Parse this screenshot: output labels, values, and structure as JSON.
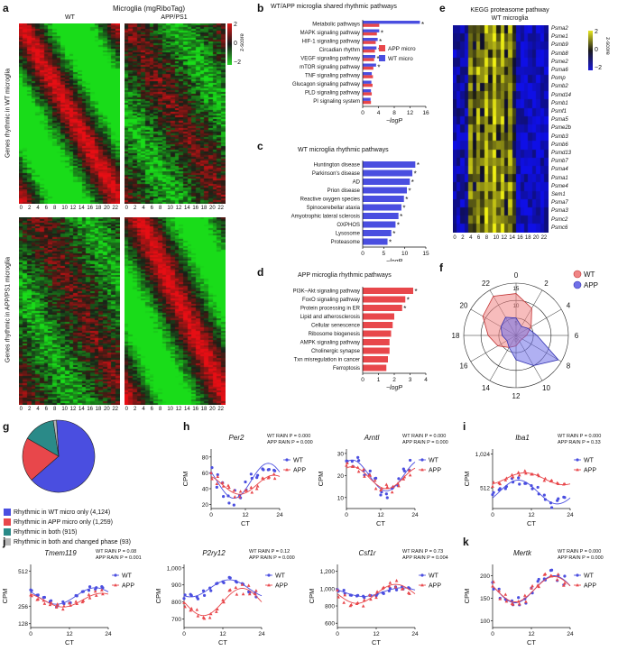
{
  "panels": {
    "a": {
      "label": "a",
      "title": "Microglia (mgRiboTag)",
      "col_wt": "WT",
      "col_app": "APP/PS1",
      "row_top": "Genes rhythmic in WT microglia",
      "row_bottom": "Genes rhythmic in APP/PS1 microglia",
      "x_ticks": [
        "0",
        "2",
        "4",
        "6",
        "8",
        "10",
        "12",
        "14",
        "16",
        "18",
        "20",
        "22"
      ],
      "scale_ticks": [
        "2",
        "0",
        "−2"
      ],
      "scale_label": "z-score"
    },
    "b": {
      "label": "b",
      "title": "WT/APP microglia shared rhythmic pathways",
      "xlabel": "−logP",
      "x_ticks": [
        "0",
        "4",
        "8",
        "12",
        "16"
      ],
      "legend": [
        "APP micro",
        "WT micro"
      ],
      "colors": {
        "app": "#e8474b",
        "wt": "#4a4ee0"
      },
      "terms": [
        "Metabolic pathways",
        "MAPK signaling pathway",
        "HIF-1 signaling pathway",
        "Circadian rhythm",
        "VEGF signaling pathway",
        "mTOR signaling pathway",
        "TNF signaling pathway",
        "Glucagon signaling pathway",
        "PLD signaling pathway",
        "PI signaling system"
      ],
      "wt": [
        14.5,
        4.2,
        3.8,
        3.5,
        3.2,
        3.4,
        2.3,
        2.2,
        2.1,
        2.0
      ],
      "app": [
        4.2,
        3.6,
        3.3,
        3.1,
        2.9,
        2.7,
        2.6,
        2.5,
        2.3,
        2.1
      ],
      "star": [
        true,
        true,
        true,
        true,
        true,
        true,
        false,
        false,
        false,
        false
      ]
    },
    "c": {
      "label": "c",
      "title": "WT microglia rhythmic pathways",
      "xlabel": "−logP",
      "x_ticks": [
        "0",
        "5",
        "10",
        "15"
      ],
      "terms": [
        "Huntington disease",
        "Parkinson's disease",
        "AD",
        "Prion disease",
        "Reactive oxygen species",
        "Spinocerebellar ataxia",
        "Amyotrophic lateral sclerosis",
        "OXPHOS",
        "Lysosome",
        "Proteasome"
      ],
      "values": [
        12.5,
        11.8,
        11.2,
        10.5,
        9.8,
        9.2,
        8.5,
        7.8,
        6.8,
        5.9
      ],
      "star": true
    },
    "d": {
      "label": "d",
      "title": "APP microglia rhythmic pathways",
      "xlabel": "−logP",
      "x_ticks": [
        "0",
        "1",
        "2",
        "3",
        "4"
      ],
      "terms": [
        "PI3K–Akt signaling pathway",
        "FoxO signaling pathway",
        "Protein processing in ER",
        "Lipid and atherosclerosis",
        "Cellular senescence",
        "Ribosome biogenesis",
        "AMPK signaling pathway",
        "Cholinergic synapse",
        "Txn misregulation in cancer",
        "Ferroptosis"
      ],
      "values": [
        3.2,
        2.7,
        2.5,
        2.0,
        1.9,
        1.8,
        1.7,
        1.7,
        1.6,
        1.5
      ],
      "star": [
        true,
        true,
        true,
        false,
        false,
        false,
        false,
        false,
        false,
        false
      ]
    },
    "e": {
      "label": "e",
      "title1": "KEGG proteasome pathway",
      "title2": "WT microglia",
      "genes": [
        "Psma2",
        "Psme1",
        "Psmb9",
        "Psmb8",
        "Psme2",
        "Psma6",
        "Pomp",
        "Psmb2",
        "Psmd14",
        "Psmb1",
        "Psmf1",
        "Psma5",
        "Psme2b",
        "Psmb3",
        "Psmb6",
        "Psmd13",
        "Psmb7",
        "Psma4",
        "Psma1",
        "Psme4",
        "Sem1",
        "Psma7",
        "Psma3",
        "Psmc2",
        "Psmc6"
      ],
      "x_ticks": [
        "0",
        "2",
        "4",
        "6",
        "8",
        "10",
        "12",
        "14",
        "16",
        "18",
        "20",
        "22"
      ],
      "scale_ticks": [
        "2",
        "0",
        "−2"
      ],
      "scale_label": "z-score"
    },
    "f": {
      "label": "f",
      "hours": [
        "0",
        "2",
        "4",
        "6",
        "8",
        "10",
        "12",
        "14",
        "16",
        "18",
        "20",
        "22"
      ],
      "rings": [
        "15",
        "10",
        "5",
        "0"
      ],
      "legend": [
        "WT",
        "APP"
      ],
      "wt": [
        12,
        9,
        5,
        3,
        2,
        2,
        3,
        4,
        6,
        8,
        11,
        13
      ],
      "app": [
        5,
        3,
        4,
        6,
        14,
        10,
        7,
        4,
        3,
        4,
        5,
        6
      ]
    },
    "g": {
      "label": "g",
      "slices": [
        {
          "label": "Rhythmic in WT micro only (4,124)",
          "value": 4124,
          "color": "#4a4ee0"
        },
        {
          "label": "Rhythmic in APP micro only (1,259)",
          "value": 1259,
          "color": "#e8474b"
        },
        {
          "label": "Rhythmic in both (915)",
          "value": 915,
          "color": "#2a8a88"
        },
        {
          "label": "Rhythmic in both and changed phase (93)",
          "value": 93,
          "color": "#b5b5b5"
        }
      ]
    },
    "h": {
      "label": "h",
      "ylabel": "CPM",
      "xlabel": "CT",
      "legend": [
        "WT",
        "APP"
      ],
      "plots": [
        {
          "gene": "Per2",
          "stat1": "WT RAIN P = 0.000",
          "stat2": "APP RAIN P = 0.000",
          "y_ticks": [
            "20",
            "40",
            "60",
            "80"
          ],
          "ymin": 15,
          "ymax": 90,
          "wt_mean": 50,
          "wt_amp": 22,
          "wt_phase": 20,
          "app_mean": 45,
          "app_amp": 12,
          "app_phase": 22
        },
        {
          "gene": "Arntl",
          "stat1": "WT RAIN P = 0.000",
          "stat2": "APP RAIN P = 0.000",
          "y_ticks": [
            "10",
            "20",
            "30"
          ],
          "ymin": 5,
          "ymax": 32,
          "wt_mean": 20,
          "wt_amp": 7,
          "wt_phase": 2,
          "app_mean": 19,
          "app_amp": 5,
          "app_phase": 2
        }
      ]
    },
    "i": {
      "label": "i",
      "gene": "Iba1",
      "stat1": "WT RAIN P = 0.000",
      "stat2": "APP RAIN P = 0.33",
      "ylabel": "CPM",
      "xlabel": "CT",
      "y_ticks": [
        "512",
        "1,024"
      ],
      "legend": [
        "WT",
        "APP"
      ]
    },
    "j": {
      "label": "j",
      "ylabel": "CPM",
      "xlabel": "CT",
      "legend": [
        "WT",
        "APP"
      ],
      "plots": [
        {
          "gene": "Tmem119",
          "stat1": "WT RAIN P = 0.08",
          "stat2": "APP RAIN P = 0.001",
          "y_ticks": [
            "128",
            "256",
            "512"
          ]
        },
        {
          "gene": "P2ry12",
          "stat1": "WT RAIN P = 0.12",
          "stat2": "APP RAIN P = 0.000",
          "y_ticks": [
            "700",
            "800",
            "900",
            "1,000"
          ]
        },
        {
          "gene": "Csf1r",
          "stat1": "WT RAIN P = 0.73",
          "stat2": "APP RAIN P = 0.004",
          "y_ticks": [
            "600",
            "800",
            "1,000",
            "1,200"
          ]
        }
      ]
    },
    "k": {
      "label": "k",
      "gene": "Mertk",
      "stat1": "WT RAIN P = 0.000",
      "stat2": "APP RAIN P = 0.000",
      "ylabel": "CPM",
      "xlabel": "CT",
      "y_ticks": [
        "100",
        "150",
        "200"
      ],
      "legend": [
        "WT",
        "APP"
      ]
    },
    "common": {
      "ct_ticks": [
        "0",
        "12",
        "24"
      ],
      "wt_color": "#4a4ee0",
      "app_color": "#e8474b"
    }
  }
}
